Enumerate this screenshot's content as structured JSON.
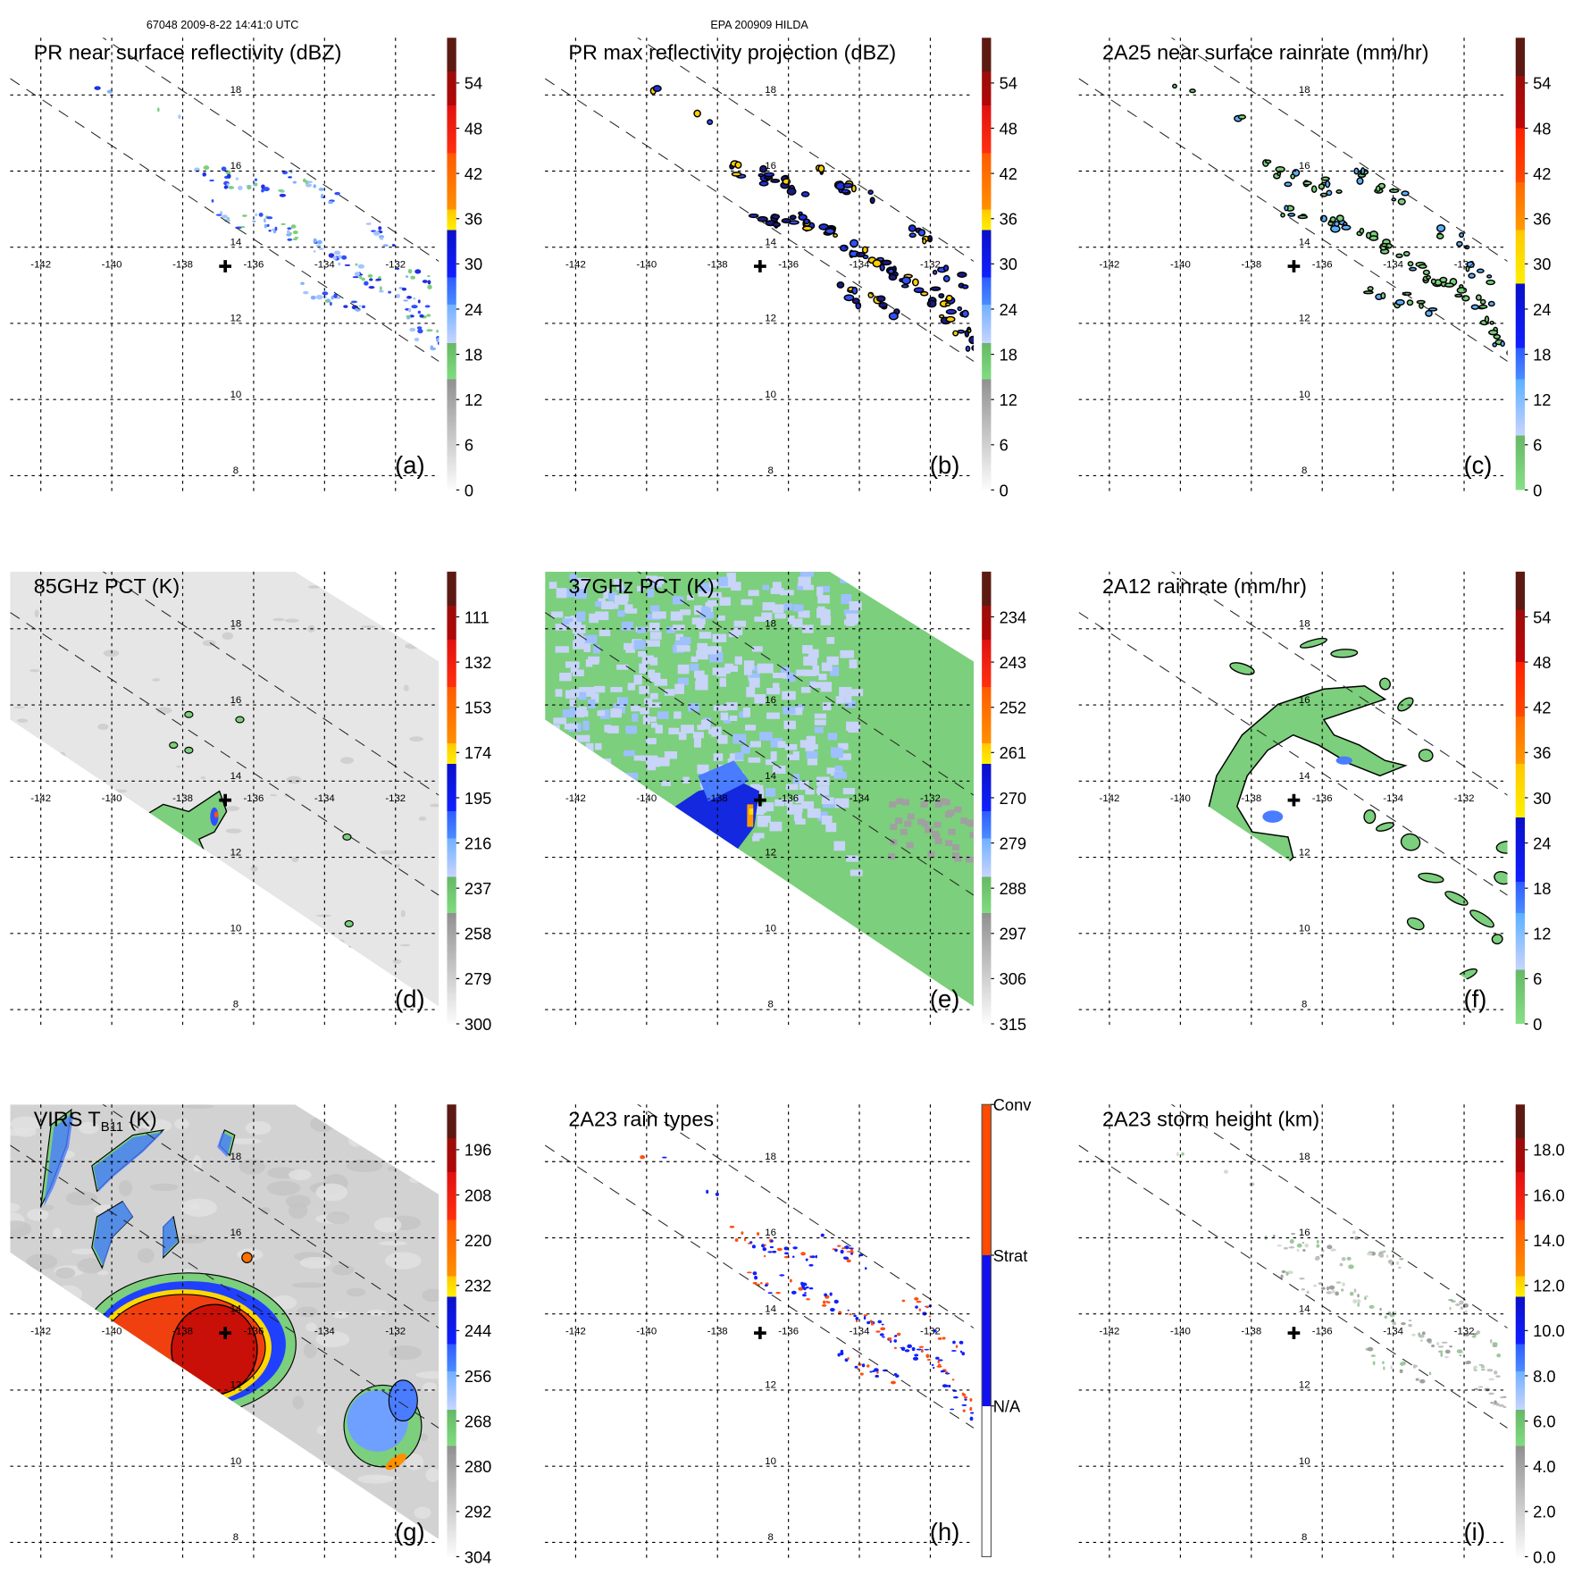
{
  "header": {
    "orbit_info": "67048 2009-8-22 14:41:0 UTC",
    "storm_info": "EPA 200909 HILDA"
  },
  "chart_data": {
    "type": "heatmap",
    "description_kind": "multi-panel satellite swath maps",
    "lon_ticks": [
      -142,
      -140,
      -138,
      -136,
      -134,
      -132
    ],
    "lat_ticks": [
      18,
      16,
      14,
      12,
      10,
      8
    ],
    "lon_range": [
      -142.9,
      -130.8
    ],
    "lat_range": [
      7.6,
      19.5
    ],
    "storm_center": {
      "lon": -136.8,
      "lat": 13.5
    },
    "colorbar_schemes": {
      "standard": [
        [
          "#5c1a12",
          "#5c1a12",
          0,
          0.075
        ],
        [
          "#9a0d0a",
          "#b00808",
          0.075,
          0.15
        ],
        [
          "#e01010",
          "#ff3010",
          0.15,
          0.255
        ],
        [
          "#ff5a00",
          "#ff9000",
          0.255,
          0.38
        ],
        [
          "#ffc800",
          "#fff000",
          0.38,
          0.425
        ],
        [
          "#0a10c8",
          "#1020ff",
          0.425,
          0.53
        ],
        [
          "#2e5cff",
          "#4a8cff",
          0.53,
          0.59
        ],
        [
          "#70b0ff",
          "#c8d4ff",
          0.59,
          0.675
        ],
        [
          "#66b866",
          "#80dc80",
          0.675,
          0.755
        ],
        [
          "#909090",
          "#fcfcfc",
          0.755,
          1
        ]
      ],
      "rain": [
        [
          "#5c1a12",
          "#5c1a12",
          0,
          0.084
        ],
        [
          "#9a0d0a",
          "#c00808",
          0.084,
          0.2
        ],
        [
          "#ff2000",
          "#ff4a00",
          0.2,
          0.32
        ],
        [
          "#ff6a00",
          "#ff9a00",
          0.32,
          0.425
        ],
        [
          "#ffc800",
          "#fff000",
          0.425,
          0.544
        ],
        [
          "#0a10c8",
          "#1020ff",
          0.544,
          0.686
        ],
        [
          "#2e5cff",
          "#4a8cff",
          0.686,
          0.755
        ],
        [
          "#5ab0ff",
          "#c8d4ff",
          0.755,
          0.88
        ],
        [
          "#66b866",
          "#86e086",
          0.88,
          1
        ]
      ],
      "raintype": [
        [
          "#ff4a00",
          "#ff4a00",
          0,
          0.333
        ],
        [
          "#1010f0",
          "#1010f0",
          0.333,
          0.667
        ],
        [
          "#ffffff",
          "#ffffff",
          0.667,
          1
        ]
      ]
    },
    "panels": [
      {
        "id": "a",
        "title": "PR near surface reflectivity (dBZ)",
        "label": "(a)",
        "scheme": "standard",
        "ticks": [
          "54",
          "48",
          "42",
          "36",
          "30",
          "24",
          "18",
          "12",
          "6",
          "0"
        ],
        "style": "swath-dots-a"
      },
      {
        "id": "b",
        "title": "PR max reflectivity projection (dBZ)",
        "label": "(b)",
        "scheme": "standard",
        "ticks": [
          "54",
          "48",
          "42",
          "36",
          "30",
          "24",
          "18",
          "12",
          "6",
          "0"
        ],
        "style": "swath-dots-b"
      },
      {
        "id": "c",
        "title": "2A25 near surface rainrate (mm/hr)",
        "label": "(c)",
        "scheme": "rain",
        "ticks": [
          "54",
          "48",
          "42",
          "36",
          "30",
          "24",
          "18",
          "12",
          "6",
          "0"
        ],
        "style": "swath-dots-c"
      },
      {
        "id": "d",
        "title": "85GHz PCT (K)",
        "label": "(d)",
        "scheme": "standard",
        "ticks": [
          "111",
          "132",
          "153",
          "174",
          "195",
          "216",
          "237",
          "258",
          "279",
          "300"
        ],
        "style": "pct85"
      },
      {
        "id": "e",
        "title": "37GHz PCT (K)",
        "label": "(e)",
        "scheme": "standard",
        "ticks": [
          "234",
          "243",
          "252",
          "261",
          "270",
          "279",
          "288",
          "297",
          "306",
          "315"
        ],
        "style": "pct37"
      },
      {
        "id": "f",
        "title": "2A12 rainrate (mm/hr)",
        "label": "(f)",
        "scheme": "rain",
        "ticks": [
          "54",
          "48",
          "42",
          "36",
          "30",
          "24",
          "18",
          "12",
          "6",
          "0"
        ],
        "style": "tmi-rain"
      },
      {
        "id": "g",
        "title": "VIRS T",
        "title_sub": "B11",
        "title_suffix": " (K)",
        "label": "(g)",
        "scheme": "standard",
        "ticks": [
          "196",
          "208",
          "220",
          "232",
          "244",
          "256",
          "268",
          "280",
          "292",
          "304"
        ],
        "style": "virs"
      },
      {
        "id": "h",
        "title": "2A23 rain types",
        "label": "(h)",
        "scheme": "raintype",
        "ticks": [
          "Conv",
          "Strat",
          "N/A"
        ],
        "style": "swath-dots-h"
      },
      {
        "id": "i",
        "title": "2A23 storm height (km)",
        "label": "(i)",
        "scheme": "standard",
        "ticks": [
          "18.0",
          "16.0",
          "14.0",
          "12.0",
          "10.0",
          "8.0",
          "6.0",
          "4.0",
          "2.0",
          "0.0"
        ],
        "style": "swath-dots-i"
      }
    ]
  }
}
